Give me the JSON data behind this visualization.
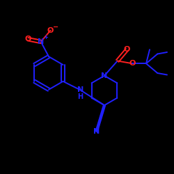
{
  "bg_color": "#000000",
  "bond_color": "#2020ff",
  "atom_color_O": "#ff2020",
  "atom_color_N": "#2020ff",
  "line_width": 1.4,
  "figsize": [
    2.5,
    2.5
  ],
  "dpi": 100,
  "xlim": [
    0,
    10
  ],
  "ylim": [
    0,
    10
  ]
}
